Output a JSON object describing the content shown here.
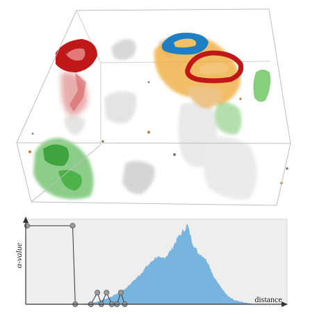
{
  "transfer_function": {
    "ylabel": "α-value",
    "xlabel": "distance",
    "colors": {
      "background": "#eeeeee",
      "histogram": "#6aaedc",
      "control_point": "#9a9a9a",
      "line": "#333333"
    }
  },
  "volume": {
    "colors": {
      "red": "#c01818",
      "blue": "#1e7fc4",
      "orange": "#f0a830",
      "green": "#3fae3a",
      "gray": "#b4b4b4",
      "box": "#bdbdbd"
    }
  },
  "chart_data": {
    "type": "area",
    "title": "",
    "xlabel": "distance",
    "ylabel": "α-value",
    "grid": false,
    "xlim": [
      0,
      100
    ],
    "ylim": [
      0,
      1
    ],
    "histogram": {
      "x": [
        0,
        4,
        8,
        12,
        16,
        20,
        24,
        26,
        28,
        30,
        32,
        34,
        36,
        38,
        40,
        42,
        44,
        46,
        48,
        50,
        52,
        54,
        56,
        58,
        60,
        62,
        64,
        66,
        68,
        70,
        72,
        74,
        76,
        78,
        80,
        82,
        84,
        86,
        88,
        90,
        92,
        94,
        96,
        100
      ],
      "values": [
        0,
        0,
        0,
        0,
        0,
        0,
        0.01,
        0.02,
        0.04,
        0.06,
        0.08,
        0.11,
        0.14,
        0.18,
        0.24,
        0.3,
        0.36,
        0.44,
        0.5,
        0.57,
        0.54,
        0.58,
        0.66,
        0.78,
        0.86,
        0.95,
        0.74,
        0.62,
        0.58,
        0.5,
        0.34,
        0.24,
        0.16,
        0.09,
        0.05,
        0.03,
        0.02,
        0.01,
        0,
        0,
        0,
        0,
        0,
        0
      ]
    },
    "control_points": [
      {
        "x": 0.5,
        "y": 0.94
      },
      {
        "x": 18,
        "y": 0.94
      },
      {
        "x": 19,
        "y": 0
      },
      {
        "x": 25,
        "y": 0
      },
      {
        "x": 27.5,
        "y": 0.14
      },
      {
        "x": 29,
        "y": 0
      },
      {
        "x": 31,
        "y": 0.14
      },
      {
        "x": 33,
        "y": 0
      },
      {
        "x": 35,
        "y": 0
      },
      {
        "x": 36.5,
        "y": 0.14
      },
      {
        "x": 38,
        "y": 0
      }
    ]
  }
}
